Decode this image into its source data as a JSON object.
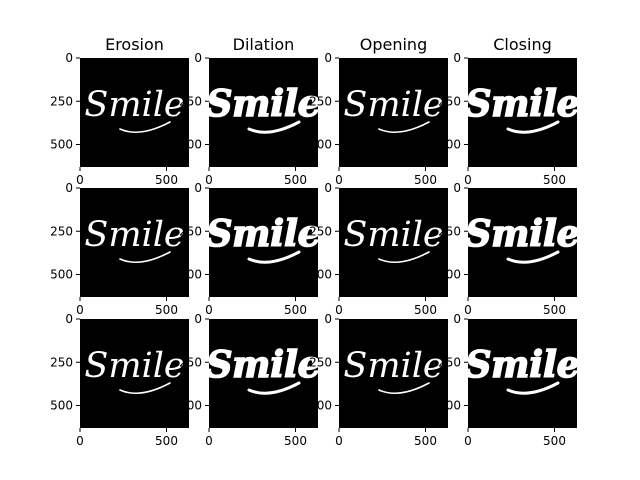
{
  "chart_data": {
    "type": "image-grid",
    "columns": [
      "Erosion",
      "Dilation",
      "Opening",
      "Closing"
    ],
    "rows": 3,
    "image_word": "Smile",
    "xticks": [
      0,
      500
    ],
    "yticks": [
      0,
      250,
      500
    ],
    "xlim": [
      0,
      630
    ],
    "ylim": [
      630,
      0
    ],
    "panel_background": "#000000",
    "foreground": "#ffffff",
    "stroke_by_column": {
      "Erosion": "thin",
      "Dilation": "bold",
      "Opening": "thin",
      "Closing": "bold"
    }
  }
}
